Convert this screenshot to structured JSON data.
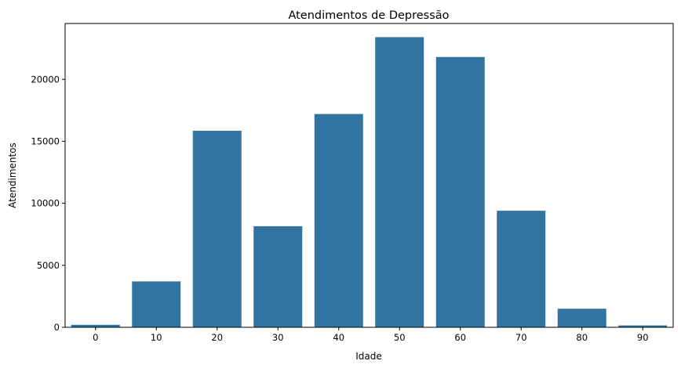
{
  "chart_data": {
    "type": "bar",
    "title": "Atendimentos de Depressão",
    "xlabel": "Idade",
    "ylabel": "Atendimentos",
    "categories": [
      "0",
      "10",
      "20",
      "30",
      "40",
      "50",
      "60",
      "70",
      "80",
      "90"
    ],
    "values": [
      200,
      3700,
      15850,
      8150,
      17200,
      23400,
      21800,
      9400,
      1500,
      150
    ],
    "ylim": [
      0,
      24500
    ],
    "yticks": [
      0,
      5000,
      10000,
      15000,
      20000
    ],
    "bar_color": "#3274a1",
    "grid": false,
    "legend": null
  }
}
